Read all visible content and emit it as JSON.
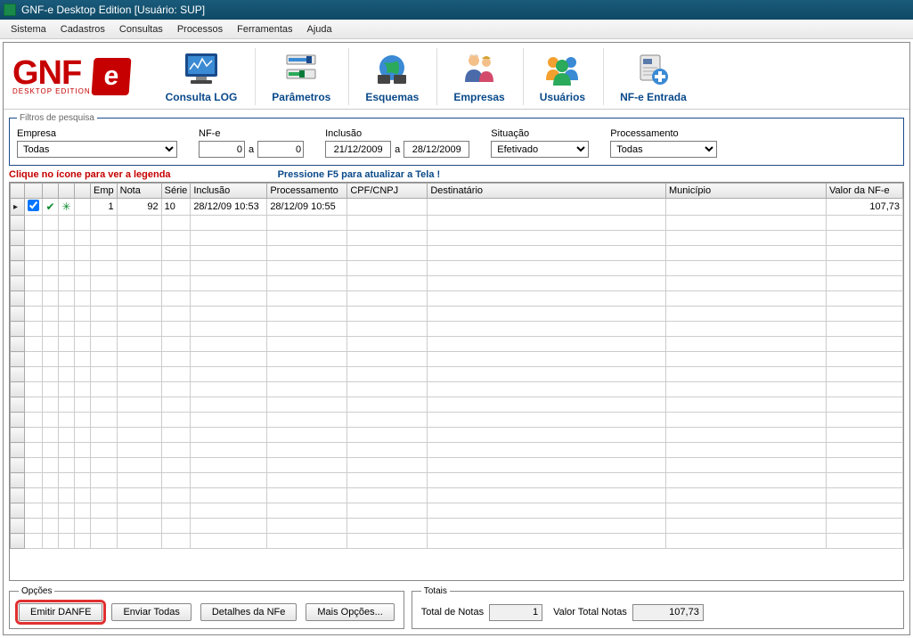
{
  "window": {
    "title": "GNF-e Desktop Edition [Usuário: SUP]"
  },
  "menu": {
    "items": [
      "Sistema",
      "Cadastros",
      "Consultas",
      "Processos",
      "Ferramentas",
      "Ajuda"
    ]
  },
  "logo": {
    "text": "GNF",
    "sub": "DESKTOP EDITION",
    "badge": "e"
  },
  "toolbar": {
    "buttons": [
      {
        "name": "consulta-log",
        "label": "Consulta LOG",
        "icon": "monitor"
      },
      {
        "name": "parametros",
        "label": "Parâmetros",
        "icon": "sliders"
      },
      {
        "name": "esquemas",
        "label": "Esquemas",
        "icon": "globe"
      },
      {
        "name": "empresas",
        "label": "Empresas",
        "icon": "person-pair"
      },
      {
        "name": "usuarios",
        "label": "Usuários",
        "icon": "users"
      },
      {
        "name": "nfe-entrada",
        "label": "NF-e Entrada",
        "icon": "doc-plus"
      }
    ]
  },
  "filters": {
    "legend": "Filtros de pesquisa",
    "empresa": {
      "label": "Empresa",
      "value": "Todas"
    },
    "nfe": {
      "label": "NF-e",
      "from": "0",
      "to": "0",
      "sep": "a"
    },
    "inclusao": {
      "label": "Inclusão",
      "from": "21/12/2009",
      "to": "28/12/2009",
      "sep": "a"
    },
    "situacao": {
      "label": "Situação",
      "value": "Efetivado"
    },
    "processamento": {
      "label": "Processamento",
      "value": "Todas"
    }
  },
  "hints": {
    "legend": "Clique no ícone para ver a legenda",
    "refresh": "Pressione F5 para atualizar a Tela !"
  },
  "grid": {
    "columns": [
      "",
      "",
      "",
      "",
      "",
      "Emp",
      "Nota",
      "Série",
      "Inclusão",
      "Processamento",
      "CPF/CNPJ",
      "Destinatário",
      "Município",
      "Valor da NF-e"
    ],
    "rows": [
      {
        "checked": true,
        "emp": "1",
        "nota": "92",
        "serie": "10",
        "inclusao": "28/12/09 10:53",
        "processamento": "28/12/09 10:55",
        "cpf": "",
        "dest": "",
        "mun": "",
        "valor": "107,73"
      }
    ],
    "empty_rows": 22
  },
  "options": {
    "legend": "Opções",
    "buttons": {
      "emitir": "Emitir DANFE",
      "enviar": "Enviar Todas",
      "detalhes": "Detalhes da NFe",
      "mais": "Mais Opções..."
    }
  },
  "totals": {
    "legend": "Totais",
    "notas_label": "Total de Notas",
    "notas_value": "1",
    "valor_label": "Valor Total Notas",
    "valor_value": "107,73"
  },
  "colors": {
    "brand_red": "#c60000",
    "brand_blue": "#0a4a8a",
    "titlebar": "#0e4a66"
  }
}
